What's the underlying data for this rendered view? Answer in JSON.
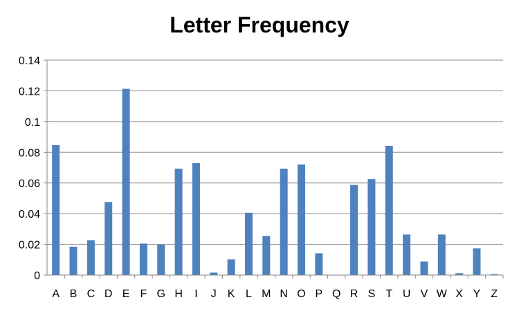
{
  "chart_data": {
    "type": "bar",
    "title": "Letter Frequency",
    "xlabel": "",
    "ylabel": "",
    "ylim": [
      0,
      0.14
    ],
    "yticks": [
      "0",
      "0.02",
      "0.04",
      "0.06",
      "0.08",
      "0.1",
      "0.12",
      "0.14"
    ],
    "yticks_values": [
      0,
      0.02,
      0.04,
      0.06,
      0.08,
      0.1,
      0.12,
      0.14
    ],
    "grid": true,
    "legend": "none",
    "bar_color": "#4F81BD",
    "categories": [
      "A",
      "B",
      "C",
      "D",
      "E",
      "F",
      "G",
      "H",
      "I",
      "J",
      "K",
      "L",
      "M",
      "N",
      "O",
      "P",
      "Q",
      "R",
      "S",
      "T",
      "U",
      "V",
      "W",
      "X",
      "Y",
      "Z"
    ],
    "values": [
      0.0847,
      0.0185,
      0.0227,
      0.0476,
      0.1213,
      0.0205,
      0.0198,
      0.0693,
      0.0729,
      0.0016,
      0.0102,
      0.0406,
      0.0255,
      0.0693,
      0.072,
      0.0142,
      0.0,
      0.0587,
      0.0625,
      0.0842,
      0.0264,
      0.0088,
      0.0264,
      0.0012,
      0.0174,
      0.0006
    ]
  }
}
